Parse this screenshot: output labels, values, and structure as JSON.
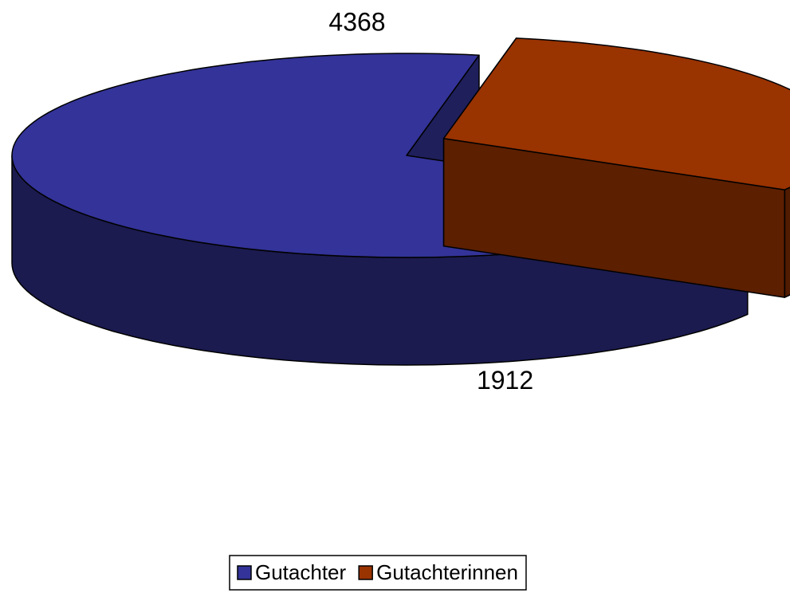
{
  "chart_data": {
    "type": "pie",
    "categories": [
      "Gutachter",
      "Gutachterinnen"
    ],
    "values": [
      4368,
      1912
    ],
    "colors": [
      "#333399",
      "#993300"
    ],
    "legend": "bottom"
  }
}
